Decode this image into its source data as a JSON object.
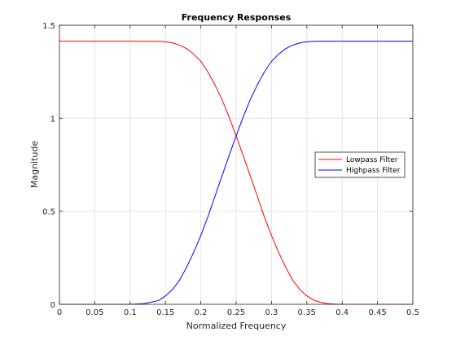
{
  "chart_data": {
    "type": "line",
    "title": "Frequency Responses",
    "xlabel": "Normalized Frequency",
    "ylabel": "Magnitude",
    "xlim": [
      0,
      0.5
    ],
    "ylim": [
      0,
      1.5
    ],
    "xticks": [
      0,
      0.05,
      0.1,
      0.15,
      0.2,
      0.25,
      0.3,
      0.35,
      0.4,
      0.45,
      0.5
    ],
    "xtick_labels": [
      "0",
      "0.05",
      "0.1",
      "0.15",
      "0.2",
      "0.25",
      "0.3",
      "0.35",
      "0.4",
      "0.45",
      "0.5"
    ],
    "yticks": [
      0,
      0.5,
      1,
      1.5
    ],
    "ytick_labels": [
      "0",
      "0.5",
      "1",
      "1.5"
    ],
    "grid": true,
    "legend_position": "right",
    "series": [
      {
        "name": "Lowpass Filter",
        "color": "#ff0000",
        "x": [
          0,
          0.05,
          0.1,
          0.14,
          0.15,
          0.16,
          0.17,
          0.18,
          0.19,
          0.2,
          0.21,
          0.22,
          0.23,
          0.24,
          0.25,
          0.26,
          0.27,
          0.28,
          0.29,
          0.3,
          0.31,
          0.32,
          0.33,
          0.34,
          0.35,
          0.36,
          0.37,
          0.38,
          0.39,
          0.4,
          0.45,
          0.5
        ],
        "y": [
          1.414,
          1.414,
          1.414,
          1.413,
          1.411,
          1.405,
          1.393,
          1.374,
          1.344,
          1.306,
          1.249,
          1.18,
          1.1,
          1.007,
          0.905,
          0.799,
          0.69,
          0.58,
          0.47,
          0.37,
          0.28,
          0.2,
          0.13,
          0.08,
          0.045,
          0.022,
          0.01,
          0.004,
          0.001,
          0.0,
          0.0,
          0.0
        ]
      },
      {
        "name": "Highpass Filter",
        "color": "#0000ff",
        "x": [
          0,
          0.05,
          0.1,
          0.12,
          0.14,
          0.15,
          0.16,
          0.17,
          0.18,
          0.19,
          0.2,
          0.21,
          0.22,
          0.23,
          0.24,
          0.25,
          0.26,
          0.27,
          0.28,
          0.29,
          0.3,
          0.31,
          0.32,
          0.33,
          0.34,
          0.35,
          0.36,
          0.37,
          0.4,
          0.45,
          0.5
        ],
        "y": [
          0.0,
          0.0,
          0.0,
          0.004,
          0.02,
          0.045,
          0.08,
          0.13,
          0.2,
          0.28,
          0.37,
          0.47,
          0.58,
          0.69,
          0.799,
          0.905,
          1.007,
          1.1,
          1.18,
          1.249,
          1.306,
          1.344,
          1.374,
          1.393,
          1.405,
          1.411,
          1.413,
          1.414,
          1.414,
          1.414,
          1.414
        ]
      }
    ]
  }
}
